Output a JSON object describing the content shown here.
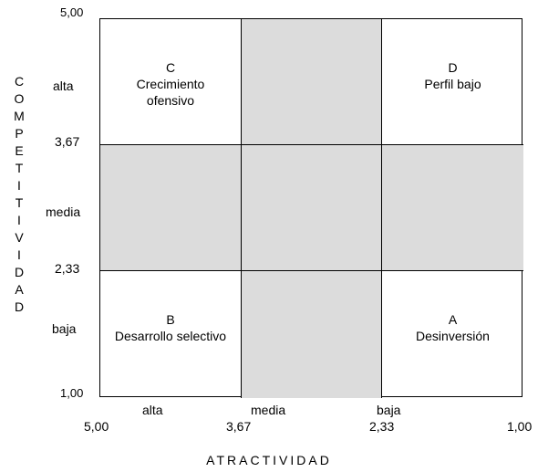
{
  "diagram": {
    "y_axis_title": "COMPETITIVIDAD",
    "x_axis_title": "ATRACTIVIDAD",
    "y_ticks": [
      "5,00",
      "3,67",
      "2,33",
      "1,00"
    ],
    "y_categories": [
      "alta",
      "media",
      "baja"
    ],
    "x_ticks": [
      "5,00",
      "3,67",
      "2,33",
      "1,00"
    ],
    "x_categories": [
      "alta",
      "media",
      "baja"
    ],
    "shade_color": "#dcdcdc",
    "cells": [
      {
        "letter": "C",
        "line1": "Crecimiento",
        "line2": "ofensivo",
        "shaded": false
      },
      {
        "letter": "",
        "line1": "",
        "line2": "",
        "shaded": true
      },
      {
        "letter": "D",
        "line1": "Perfil bajo",
        "line2": "",
        "shaded": false
      },
      {
        "letter": "",
        "line1": "",
        "line2": "",
        "shaded": true
      },
      {
        "letter": "",
        "line1": "",
        "line2": "",
        "shaded": true
      },
      {
        "letter": "",
        "line1": "",
        "line2": "",
        "shaded": true
      },
      {
        "letter": "B",
        "line1": "Desarrollo selectivo",
        "line2": "",
        "shaded": false
      },
      {
        "letter": "",
        "line1": "",
        "line2": "",
        "shaded": true
      },
      {
        "letter": "A",
        "line1": "Desinversión",
        "line2": "",
        "shaded": false
      }
    ]
  }
}
